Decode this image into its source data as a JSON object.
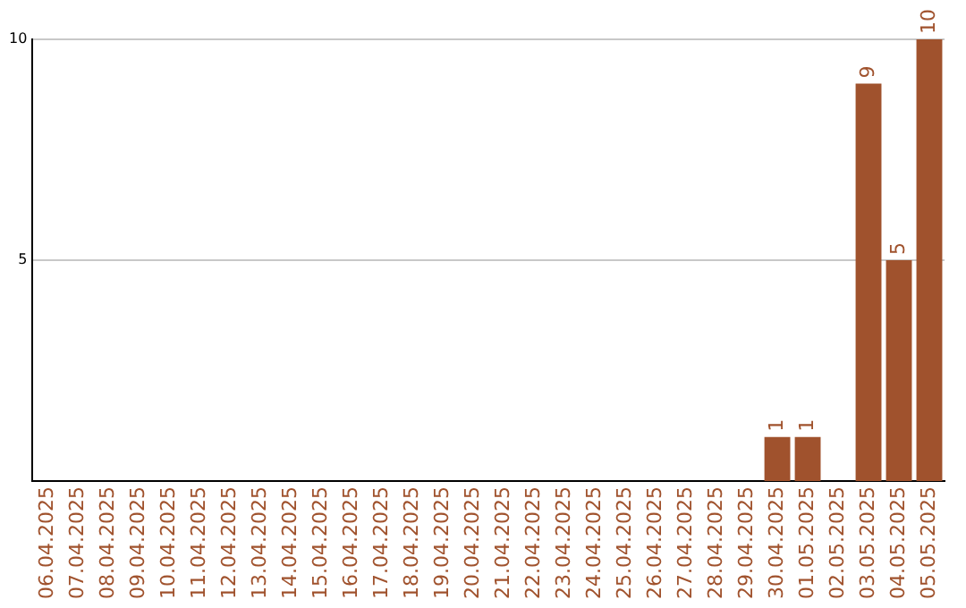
{
  "chart_data": {
    "type": "bar",
    "categories": [
      "06.04.2025",
      "07.04.2025",
      "08.04.2025",
      "09.04.2025",
      "10.04.2025",
      "11.04.2025",
      "12.04.2025",
      "13.04.2025",
      "14.04.2025",
      "15.04.2025",
      "16.04.2025",
      "17.04.2025",
      "18.04.2025",
      "19.04.2025",
      "20.04.2025",
      "21.04.2025",
      "22.04.2025",
      "23.04.2025",
      "24.04.2025",
      "25.04.2025",
      "26.04.2025",
      "27.04.2025",
      "28.04.2025",
      "29.04.2025",
      "30.04.2025",
      "01.05.2025",
      "02.05.2025",
      "03.05.2025",
      "04.05.2025",
      "05.05.2025"
    ],
    "values": [
      0,
      0,
      0,
      0,
      0,
      0,
      0,
      0,
      0,
      0,
      0,
      0,
      0,
      0,
      0,
      0,
      0,
      0,
      0,
      0,
      0,
      0,
      0,
      0,
      1,
      1,
      0,
      9,
      5,
      10
    ],
    "value_labels": [
      null,
      null,
      null,
      null,
      null,
      null,
      null,
      null,
      null,
      null,
      null,
      null,
      null,
      null,
      null,
      null,
      null,
      null,
      null,
      null,
      null,
      null,
      null,
      null,
      "1",
      "1",
      null,
      "9",
      "5",
      "10"
    ],
    "color": "#a0522d",
    "ylim": [
      0,
      10
    ],
    "yticks": [
      5,
      10
    ],
    "grid": "y",
    "legend": false
  }
}
